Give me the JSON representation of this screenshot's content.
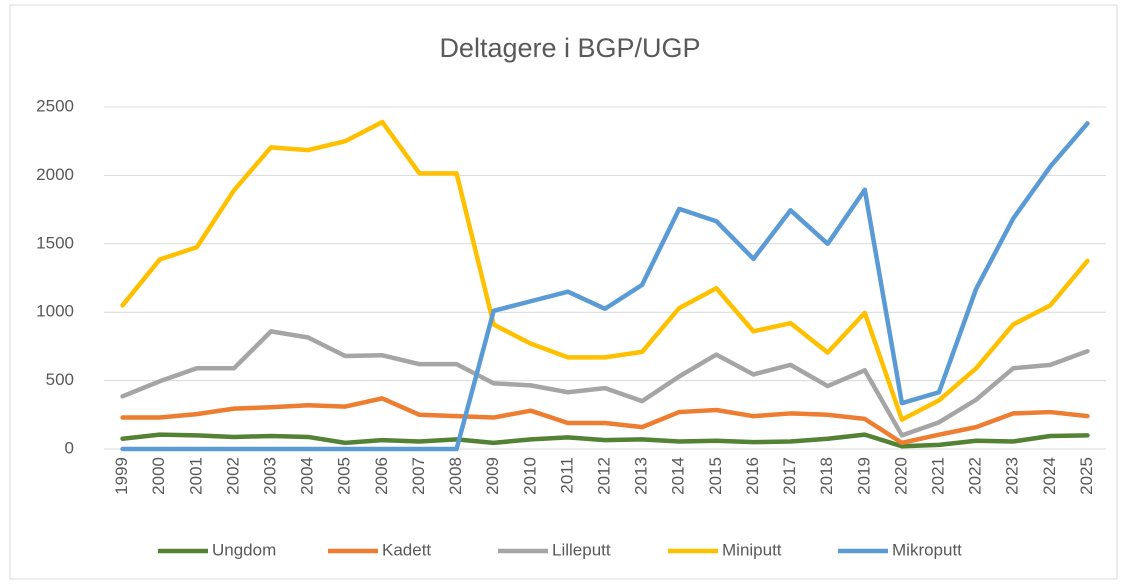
{
  "chart_data": {
    "type": "line",
    "title": "Deltagere i BGP/UGP",
    "categories": [
      "1999",
      "2000",
      "2001",
      "2002",
      "2003",
      "2004",
      "2005",
      "2006",
      "2007",
      "2008",
      "2009",
      "2010",
      "2011",
      "2012",
      "2013",
      "2014",
      "2015",
      "2016",
      "2017",
      "2018",
      "2019",
      "2020",
      "2021",
      "2022",
      "2023",
      "2024",
      "2025"
    ],
    "series": [
      {
        "name": "Ungdom",
        "color": "#548235",
        "values": [
          75,
          105,
          100,
          88,
          95,
          88,
          45,
          65,
          55,
          70,
          45,
          70,
          85,
          65,
          70,
          55,
          60,
          50,
          55,
          75,
          105,
          20,
          30,
          60,
          55,
          95,
          100
        ]
      },
      {
        "name": "Kadett",
        "color": "#ed7d31",
        "values": [
          230,
          230,
          255,
          295,
          305,
          320,
          310,
          370,
          250,
          240,
          230,
          280,
          190,
          190,
          160,
          270,
          285,
          240,
          260,
          250,
          220,
          45,
          105,
          160,
          260,
          270,
          240
        ]
      },
      {
        "name": "Lilleputt",
        "color": "#a5a5a5",
        "values": [
          385,
          495,
          590,
          590,
          860,
          815,
          680,
          685,
          620,
          620,
          480,
          465,
          415,
          445,
          350,
          530,
          690,
          545,
          615,
          460,
          575,
          100,
          195,
          360,
          590,
          615,
          715
        ]
      },
      {
        "name": "Miniputt",
        "color": "#ffc000",
        "values": [
          1050,
          1385,
          1475,
          1890,
          2205,
          2185,
          2250,
          2390,
          2015,
          2015,
          910,
          770,
          670,
          670,
          710,
          1030,
          1175,
          860,
          920,
          705,
          995,
          215,
          355,
          590,
          910,
          1050,
          1375
        ]
      },
      {
        "name": "Mikroputt",
        "color": "#5b9bd5",
        "values": [
          0,
          0,
          0,
          0,
          0,
          0,
          0,
          0,
          0,
          0,
          1010,
          1080,
          1150,
          1025,
          1200,
          1755,
          1665,
          1390,
          1745,
          1500,
          1895,
          335,
          415,
          1170,
          1685,
          2065,
          2380
        ]
      }
    ],
    "ylim": [
      0,
      2500
    ],
    "yticks": [
      0,
      500,
      1000,
      1500,
      2000,
      2500
    ],
    "grid": true,
    "legend": "bottom"
  }
}
